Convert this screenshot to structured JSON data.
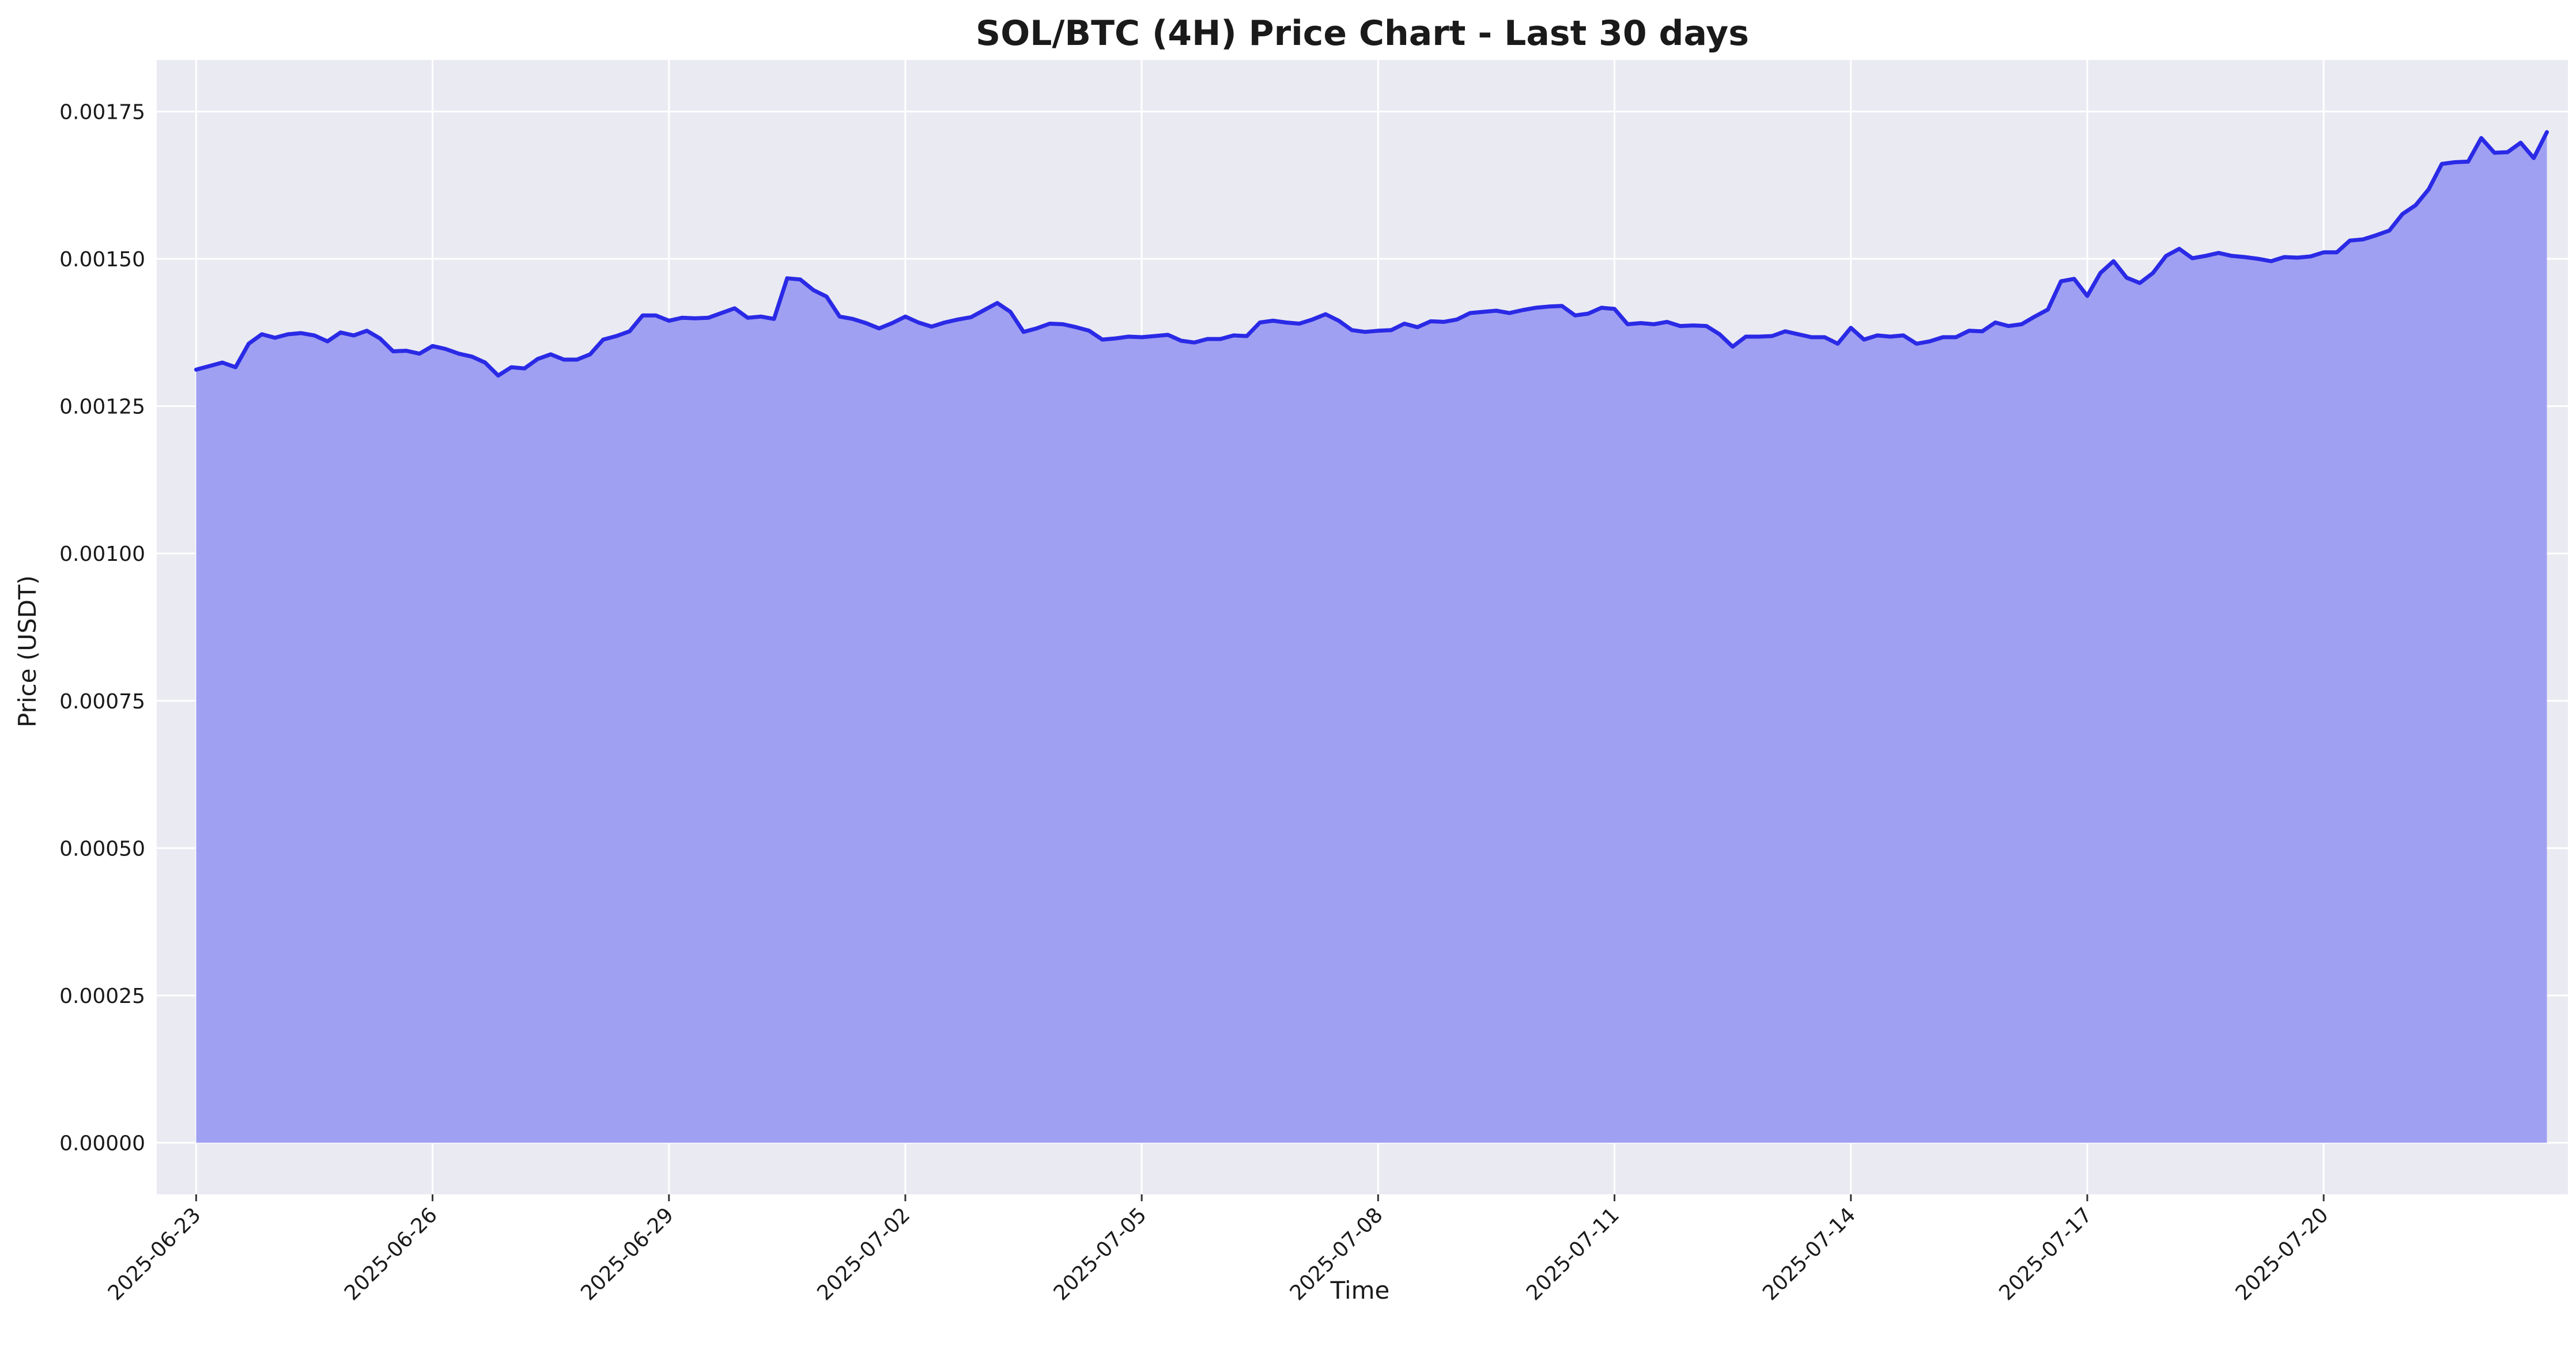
{
  "chart_data": {
    "type": "area",
    "title": "SOL/BTC (4H) Price Chart - Last 30 days",
    "xlabel": "Time",
    "ylabel": "Price (USDT)",
    "x_start": "2025-06-23",
    "x_step_hours": 4,
    "x_range_days": [
      -0.5,
      30.1
    ],
    "ylim": [
      -8.75e-05,
      0.0018375
    ],
    "yticks": [
      0.0,
      0.00025,
      0.0005,
      0.00075,
      0.001,
      0.00125,
      0.0015,
      0.00175
    ],
    "ytick_labels": [
      "0.00000",
      "0.00025",
      "0.00050",
      "0.00075",
      "0.00100",
      "0.00125",
      "0.00150",
      "0.00175"
    ],
    "xticks": [
      "2025-06-23",
      "2025-06-26",
      "2025-06-29",
      "2025-07-02",
      "2025-07-05",
      "2025-07-08",
      "2025-07-11",
      "2025-07-14",
      "2025-07-17",
      "2025-07-20"
    ],
    "grid": true,
    "background": "#eaeaf2",
    "line_color": "#2a2ae6",
    "fill_color": "#a0a0f2",
    "series": [
      {
        "values": [
          0.001312,
          0.001318,
          0.001324,
          0.001316,
          0.001356,
          0.001372,
          0.001366,
          0.001372,
          0.001374,
          0.00137,
          0.00136,
          0.001375,
          0.00137,
          0.001378,
          0.001365,
          0.001343,
          0.001344,
          0.001339,
          0.001352,
          0.001347,
          0.001339,
          0.001334,
          0.001324,
          0.001302,
          0.001316,
          0.001314,
          0.00133,
          0.001338,
          0.001329,
          0.001329,
          0.001338,
          0.001363,
          0.001369,
          0.001377,
          0.001404,
          0.001404,
          0.001395,
          0.0014,
          0.001399,
          0.0014,
          0.001408,
          0.001416,
          0.0014,
          0.001402,
          0.001398,
          0.001467,
          0.001465,
          0.001447,
          0.001436,
          0.001402,
          0.001398,
          0.001391,
          0.001382,
          0.001391,
          0.001402,
          0.001392,
          0.001385,
          0.001392,
          0.001397,
          0.001401,
          0.001413,
          0.001425,
          0.00141,
          0.001376,
          0.001382,
          0.00139,
          0.001389,
          0.001384,
          0.001378,
          0.001363,
          0.001365,
          0.001368,
          0.001367,
          0.001369,
          0.001371,
          0.001361,
          0.001358,
          0.001364,
          0.001364,
          0.00137,
          0.001369,
          0.001392,
          0.001395,
          0.001392,
          0.00139,
          0.001397,
          0.001406,
          0.001395,
          0.001379,
          0.001376,
          0.001378,
          0.001379,
          0.00139,
          0.001384,
          0.001394,
          0.001393,
          0.001397,
          0.001408,
          0.00141,
          0.001412,
          0.001408,
          0.001413,
          0.001417,
          0.001419,
          0.00142,
          0.001404,
          0.001407,
          0.001417,
          0.001415,
          0.001389,
          0.001391,
          0.001389,
          0.001393,
          0.001386,
          0.001387,
          0.001386,
          0.001372,
          0.001351,
          0.001368,
          0.001368,
          0.001369,
          0.001377,
          0.001372,
          0.001367,
          0.001367,
          0.001356,
          0.001383,
          0.001363,
          0.00137,
          0.001368,
          0.00137,
          0.001356,
          0.00136,
          0.001367,
          0.001367,
          0.001378,
          0.001377,
          0.001392,
          0.001386,
          0.001389,
          0.001402,
          0.001414,
          0.001462,
          0.001466,
          0.001437,
          0.001476,
          0.001496,
          0.001468,
          0.001459,
          0.001476,
          0.001505,
          0.001517,
          0.001501,
          0.001505,
          0.00151,
          0.001505,
          0.001503,
          0.0015,
          0.001496,
          0.001503,
          0.001502,
          0.001504,
          0.001511,
          0.001511,
          0.001531,
          0.001533,
          0.00154,
          0.001548,
          0.001576,
          0.001591,
          0.001618,
          0.001661,
          0.001664,
          0.001665,
          0.001705,
          0.00168,
          0.001681,
          0.001697,
          0.001671,
          0.001715
        ]
      }
    ]
  }
}
